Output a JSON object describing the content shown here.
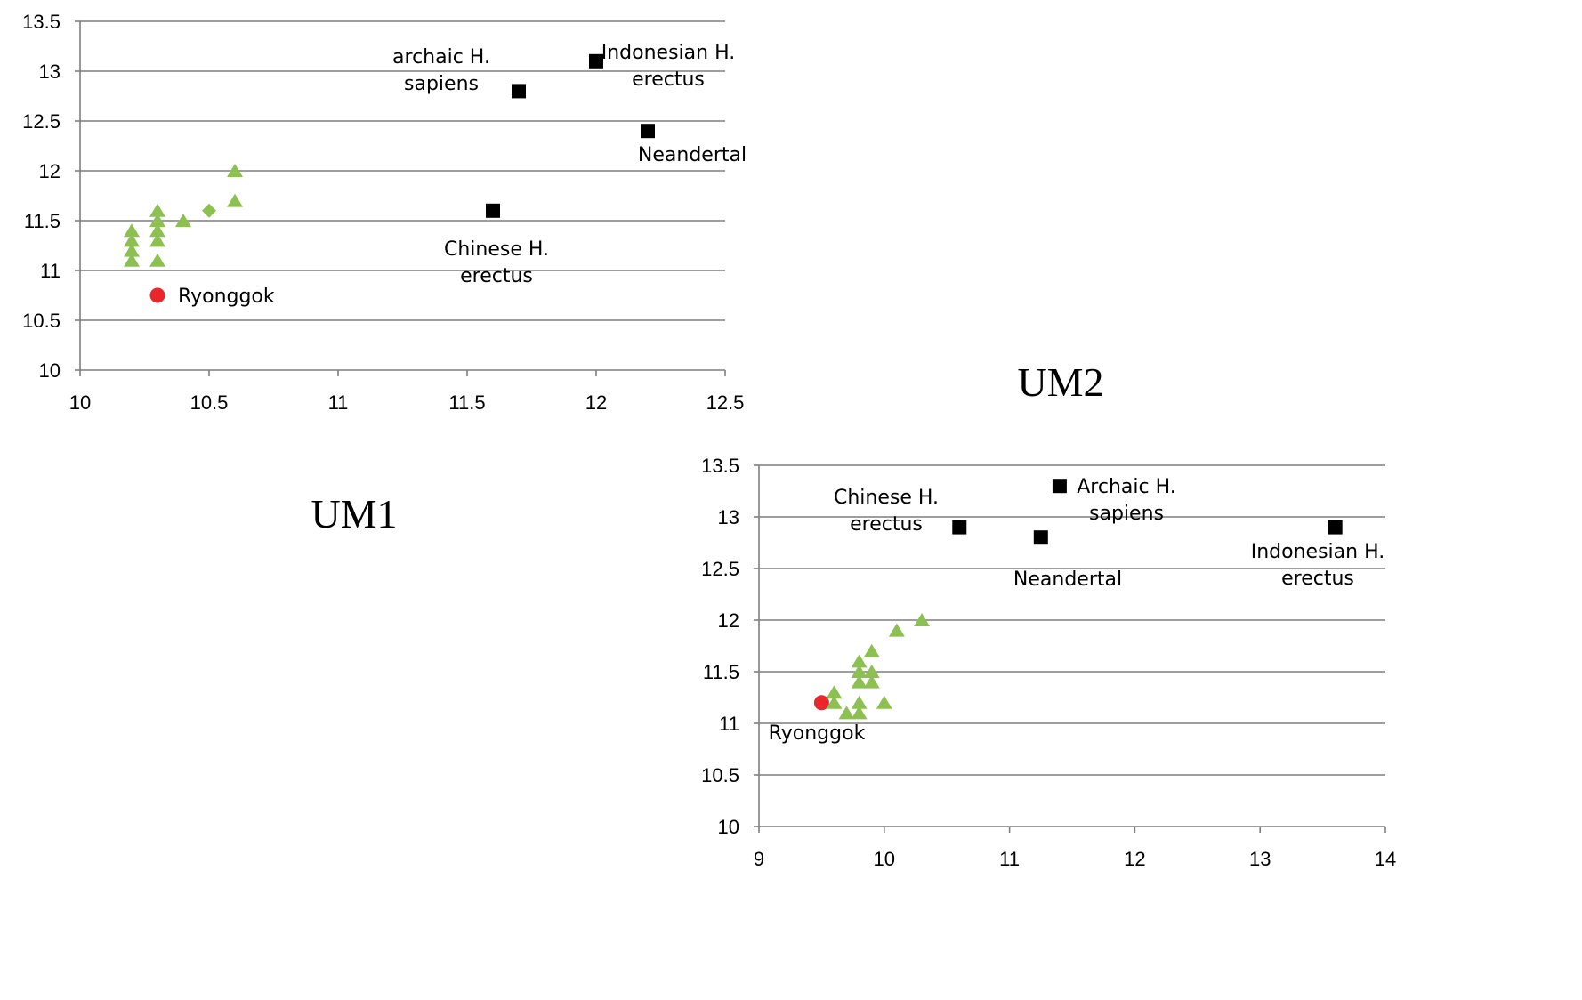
{
  "colors": {
    "fossil": "#000000",
    "modern": "#8cc152",
    "ryonggok": "#e8262b",
    "gridline": "#7f7f7f"
  },
  "chart_data": [
    {
      "type": "scatter",
      "title": "UM1",
      "xlim": [
        10,
        12.5
      ],
      "ylim": [
        10,
        13.5
      ],
      "x_ticks": [
        "10",
        "10.5",
        "11",
        "11.5",
        "12",
        "12.5"
      ],
      "y_ticks": [
        "10",
        "10.5",
        "11",
        "11.5",
        "12",
        "12.5",
        "13",
        "13.5"
      ],
      "grid": "horizontal",
      "points": [
        {
          "x": 11.7,
          "y": 12.8,
          "marker": "square",
          "label": [
            "archaic H.",
            "sapiens"
          ]
        },
        {
          "x": 12.0,
          "y": 13.1,
          "marker": "square",
          "label": [
            "Indonesian H.",
            "erectus"
          ]
        },
        {
          "x": 12.2,
          "y": 12.4,
          "marker": "square",
          "label": [
            "Neandertal"
          ]
        },
        {
          "x": 11.6,
          "y": 11.6,
          "marker": "square",
          "label": [
            "Chinese H.",
            "erectus"
          ]
        },
        {
          "x": 10.3,
          "y": 10.75,
          "marker": "circle",
          "label": [
            "Ryonggok"
          ]
        },
        {
          "x": 10.2,
          "y": 11.4,
          "marker": "triangle"
        },
        {
          "x": 10.2,
          "y": 11.3,
          "marker": "triangle"
        },
        {
          "x": 10.2,
          "y": 11.2,
          "marker": "triangle"
        },
        {
          "x": 10.2,
          "y": 11.1,
          "marker": "triangle"
        },
        {
          "x": 10.3,
          "y": 11.6,
          "marker": "triangle"
        },
        {
          "x": 10.3,
          "y": 11.5,
          "marker": "triangle"
        },
        {
          "x": 10.3,
          "y": 11.4,
          "marker": "triangle"
        },
        {
          "x": 10.3,
          "y": 11.3,
          "marker": "triangle"
        },
        {
          "x": 10.3,
          "y": 11.1,
          "marker": "triangle"
        },
        {
          "x": 10.4,
          "y": 11.5,
          "marker": "triangle"
        },
        {
          "x": 10.5,
          "y": 11.6,
          "marker": "diamond"
        },
        {
          "x": 10.6,
          "y": 11.7,
          "marker": "triangle"
        },
        {
          "x": 10.6,
          "y": 12.0,
          "marker": "triangle"
        }
      ]
    },
    {
      "type": "scatter",
      "title": "UM2",
      "xlim": [
        9,
        14
      ],
      "ylim": [
        10,
        13.5
      ],
      "x_ticks": [
        "9",
        "10",
        "11",
        "12",
        "13",
        "14"
      ],
      "y_ticks": [
        "10",
        "10.5",
        "11",
        "11.5",
        "12",
        "12.5",
        "13",
        "13.5"
      ],
      "grid": "horizontal",
      "points": [
        {
          "x": 10.6,
          "y": 12.9,
          "marker": "square",
          "label": [
            "Chinese H.",
            "erectus"
          ]
        },
        {
          "x": 11.4,
          "y": 13.3,
          "marker": "square",
          "label": [
            "Archaic H.",
            "sapiens"
          ]
        },
        {
          "x": 11.25,
          "y": 12.8,
          "marker": "square",
          "label": [
            "Neandertal"
          ]
        },
        {
          "x": 13.6,
          "y": 12.9,
          "marker": "square",
          "label": [
            "Indonesian H.",
            "erectus"
          ]
        },
        {
          "x": 9.5,
          "y": 11.2,
          "marker": "circle",
          "label": [
            "Ryonggok"
          ]
        },
        {
          "x": 9.6,
          "y": 11.3,
          "marker": "triangle"
        },
        {
          "x": 9.6,
          "y": 11.2,
          "marker": "triangle"
        },
        {
          "x": 9.7,
          "y": 11.1,
          "marker": "triangle"
        },
        {
          "x": 9.8,
          "y": 11.6,
          "marker": "triangle"
        },
        {
          "x": 9.8,
          "y": 11.5,
          "marker": "triangle"
        },
        {
          "x": 9.8,
          "y": 11.4,
          "marker": "triangle"
        },
        {
          "x": 9.8,
          "y": 11.2,
          "marker": "triangle"
        },
        {
          "x": 9.8,
          "y": 11.1,
          "marker": "triangle"
        },
        {
          "x": 9.9,
          "y": 11.7,
          "marker": "triangle"
        },
        {
          "x": 9.9,
          "y": 11.5,
          "marker": "triangle"
        },
        {
          "x": 9.9,
          "y": 11.4,
          "marker": "triangle"
        },
        {
          "x": 10.0,
          "y": 11.2,
          "marker": "triangle"
        },
        {
          "x": 10.1,
          "y": 11.9,
          "marker": "triangle"
        },
        {
          "x": 10.3,
          "y": 12.0,
          "marker": "triangle"
        }
      ]
    }
  ]
}
